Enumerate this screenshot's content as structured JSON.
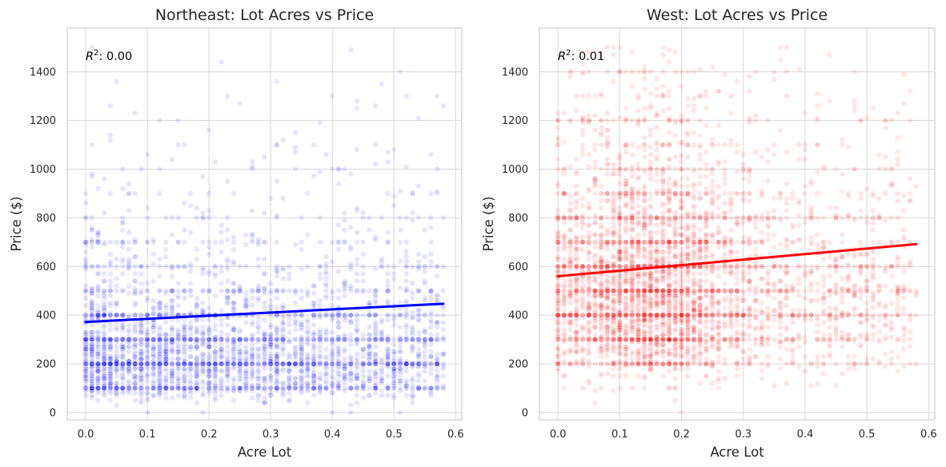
{
  "figure": {
    "charts_count": 2
  },
  "chart_data": [
    {
      "type": "scatter",
      "title": "Northeast: Lot Acres vs Price",
      "xlabel": "Acre Lot",
      "ylabel": "Price ($)",
      "xlim": [
        -0.03,
        0.61
      ],
      "ylim": [
        -30,
        1580
      ],
      "x_ticks": [
        0.0,
        0.1,
        0.2,
        0.3,
        0.4,
        0.5,
        0.6
      ],
      "x_tick_labels": [
        "0.0",
        "0.1",
        "0.2",
        "0.3",
        "0.4",
        "0.5",
        "0.6"
      ],
      "y_ticks": [
        0,
        200,
        400,
        600,
        800,
        1000,
        1200,
        1400
      ],
      "y_tick_labels": [
        "0",
        "200",
        "400",
        "600",
        "800",
        "1000",
        "1200",
        "1400"
      ],
      "grid": true,
      "r2_label": "R²: 0.00",
      "r2_prefix": "R",
      "r2_sup": "2",
      "r2_value": ": 0.00",
      "regression_line": {
        "x": [
          0.0,
          0.58
        ],
        "y": [
          372,
          447
        ]
      },
      "point_color": "#0000ff",
      "point_alpha": 0.1,
      "distribution": {
        "x_range": [
          0.0,
          0.58
        ],
        "price_range": [
          20,
          1500
        ],
        "dense_x_max": 0.3,
        "typical_price_range": [
          30,
          700
        ]
      }
    },
    {
      "type": "scatter",
      "title": "West: Lot Acres vs Price",
      "xlabel": "Acre Lot",
      "ylabel": "Price ($)",
      "xlim": [
        -0.03,
        0.61
      ],
      "ylim": [
        -30,
        1580
      ],
      "x_ticks": [
        0.0,
        0.1,
        0.2,
        0.3,
        0.4,
        0.5,
        0.6
      ],
      "x_tick_labels": [
        "0.0",
        "0.1",
        "0.2",
        "0.3",
        "0.4",
        "0.5",
        "0.6"
      ],
      "y_ticks": [
        0,
        200,
        400,
        600,
        800,
        1000,
        1200,
        1400
      ],
      "y_tick_labels": [
        "0",
        "200",
        "400",
        "600",
        "800",
        "1000",
        "1200",
        "1400"
      ],
      "grid": true,
      "r2_label": "R²: 0.01",
      "r2_prefix": "R",
      "r2_sup": "2",
      "r2_value": ": 0.01",
      "regression_line": {
        "x": [
          0.0,
          0.58
        ],
        "y": [
          560,
          692
        ]
      },
      "point_color": "#ff0000",
      "point_alpha": 0.1,
      "distribution": {
        "x_range": [
          0.0,
          0.58
        ],
        "price_range": [
          20,
          1500
        ],
        "dense_x_max": 0.25,
        "typical_price_range": [
          150,
          1000
        ]
      }
    }
  ]
}
